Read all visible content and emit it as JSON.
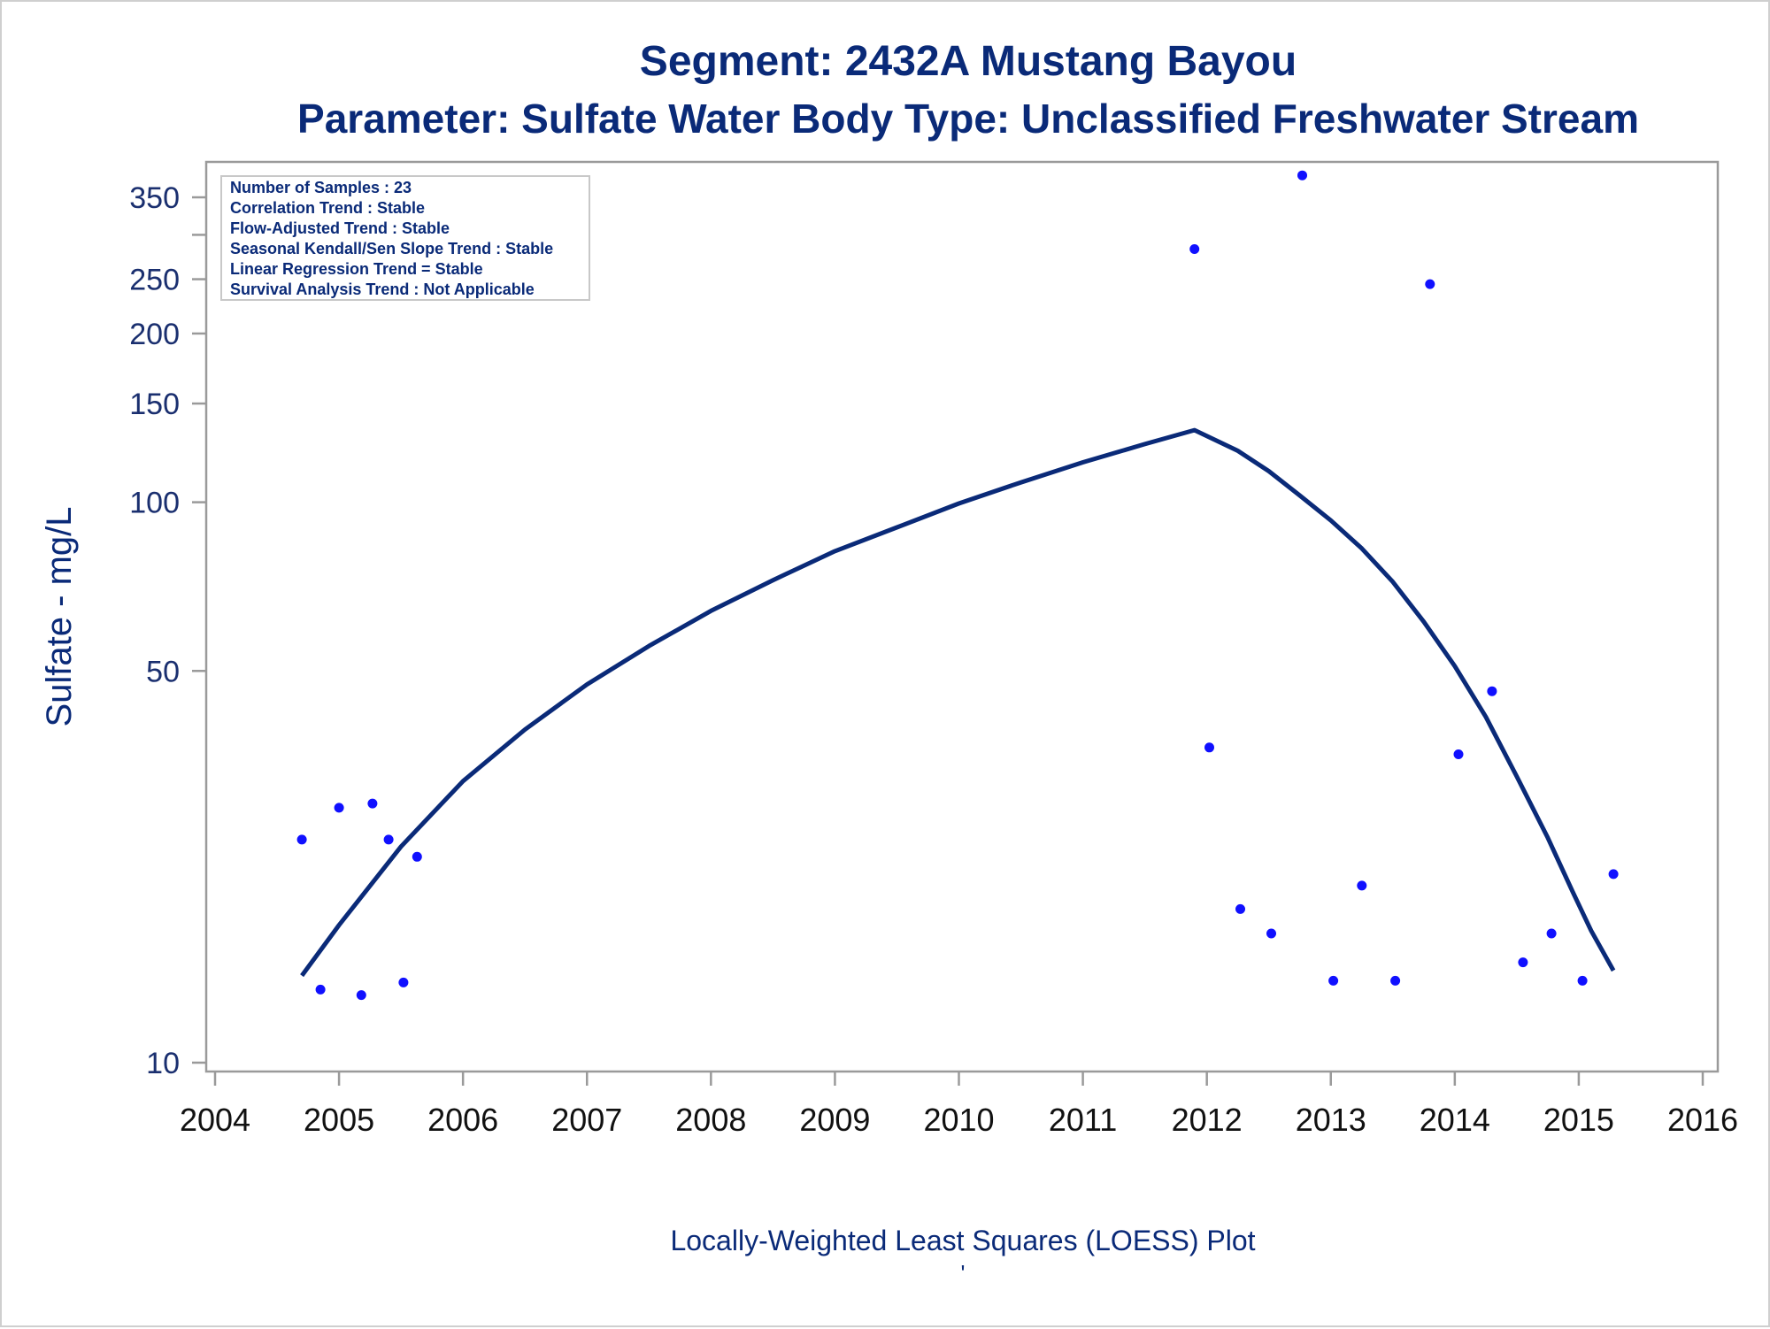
{
  "titles": {
    "line1": "Segment: 2432A  Mustang Bayou",
    "line2": "Parameter: Sulfate   Water Body Type: Unclassified Freshwater Stream"
  },
  "stats_box": {
    "lines": [
      "Number of Samples : 23",
      "Correlation Trend : Stable",
      "Flow-Adjusted Trend : Stable",
      "Seasonal Kendall/Sen Slope Trend : Stable",
      "Linear Regression Trend = Stable",
      "Survival Analysis Trend : Not Applicable"
    ]
  },
  "footnote": "Locally-Weighted Least Squares (LOESS) Plot",
  "footnote_mark": "'",
  "colors": {
    "title": "#0a2a78",
    "points": "#1010ff",
    "curve": "#0a2a78",
    "axis": "#9a9a9a"
  },
  "chart_data": {
    "type": "scatter",
    "title": "Segment: 2432A  Mustang Bayou",
    "subtitle": "Parameter: Sulfate   Water Body Type: Unclassified Freshwater Stream",
    "xlabel": "",
    "ylabel": "Sulfate - mg/L",
    "y_scale": "log",
    "xlim": [
      2004,
      2016
    ],
    "ylim": [
      9.5,
      400
    ],
    "x_ticks": [
      "2004",
      "2005",
      "2006",
      "2007",
      "2008",
      "2009",
      "2010",
      "2011",
      "2012",
      "2013",
      "2014",
      "2015",
      "2016"
    ],
    "y_ticks": [
      10,
      50,
      100,
      150,
      200,
      250,
      300,
      350
    ],
    "y_tick_labels": [
      "10",
      "50",
      "100",
      "150",
      "200",
      "250",
      "",
      "350"
    ],
    "grid": false,
    "series": [
      {
        "kind": "points",
        "x": [
          2004.7,
          2004.85,
          2005.0,
          2005.18,
          2005.27,
          2005.4,
          2005.52,
          2005.63,
          2011.9,
          2012.02,
          2012.27,
          2012.52,
          2012.77,
          2013.02,
          2013.25,
          2013.52,
          2013.8,
          2014.03,
          2014.3,
          2014.55,
          2014.78,
          2015.03,
          2015.28
        ],
        "y": [
          25,
          13.5,
          28.5,
          13.2,
          29,
          25,
          13.9,
          23.3,
          283,
          36.5,
          18.8,
          17,
          383,
          14,
          20.7,
          14,
          245,
          35.5,
          46,
          15.1,
          17,
          14,
          21.7
        ]
      },
      {
        "kind": "loess",
        "x": [
          2004.7,
          2005.0,
          2005.5,
          2006.0,
          2006.5,
          2007.0,
          2007.5,
          2008.0,
          2008.5,
          2009.0,
          2009.5,
          2010.0,
          2010.5,
          2011.0,
          2011.5,
          2011.9,
          2012.25,
          2012.5,
          2012.75,
          2013.0,
          2013.25,
          2013.5,
          2013.75,
          2014.0,
          2014.25,
          2014.5,
          2014.75,
          2014.95,
          2015.1,
          2015.28
        ],
        "y": [
          14.3,
          17.6,
          24.3,
          31.8,
          39.3,
          47.3,
          55.4,
          64,
          72.6,
          81.8,
          90.2,
          99.5,
          108.5,
          117.8,
          127,
          134.5,
          123.5,
          113.6,
          102.8,
          92.8,
          82.7,
          72.1,
          61.2,
          51,
          41.4,
          32.4,
          25.2,
          20.2,
          17.2,
          14.6
        ]
      }
    ]
  }
}
